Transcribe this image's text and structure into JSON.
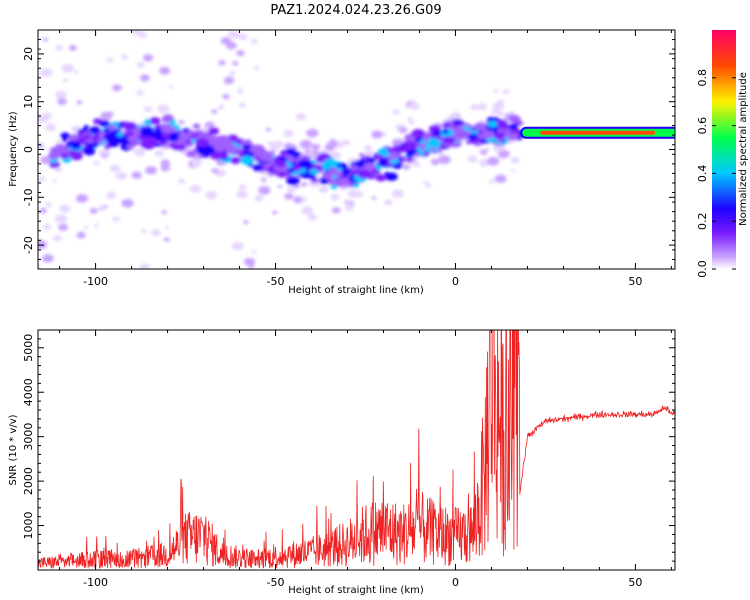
{
  "figure": {
    "title": "PAZ1.2024.024.23.26.G09"
  },
  "chart_data": [
    {
      "type": "heatmap",
      "xlabel": "Height of straight line (km)",
      "ylabel": "Frequency (Hz)",
      "xlim": [
        -116,
        61
      ],
      "ylim": [
        -25,
        25
      ],
      "xticks": [
        -100,
        -50,
        0,
        50
      ],
      "yticks": [
        -20,
        -10,
        0,
        10,
        20
      ],
      "colorbar": {
        "label": "Normalized spectral amplitude",
        "range": [
          0,
          1
        ],
        "ticks": [
          "0.0",
          "0.2",
          "0.4",
          "0.6",
          "0.8"
        ],
        "colors": [
          "#ffffff",
          "#c9a3ff",
          "#7a1cff",
          "#1f00ff",
          "#00c8ff",
          "#00ff4a",
          "#fff200",
          "#ff4a00",
          "#ff0066"
        ]
      },
      "ridge": {
        "description_free": true,
        "x": [
          -110,
          -100,
          -90,
          -80,
          -70,
          -60,
          -50,
          -40,
          -30,
          -20,
          -10,
          0,
          10,
          18,
          25,
          35,
          45,
          55,
          61
        ],
        "y": [
          -1,
          3,
          3,
          4,
          1,
          0,
          -3,
          -4,
          -5,
          -3,
          1,
          3,
          4,
          3,
          3,
          3.5,
          3.8,
          3.5,
          3.2
        ]
      },
      "tonal_line": {
        "x_start": 18,
        "x_end": 61,
        "frequency": 3.5,
        "amplitude": 0.85
      }
    },
    {
      "type": "line",
      "xlabel": "Height of straight line (km)",
      "ylabel": "SNR (10 * v/v)",
      "xlim": [
        -116,
        61
      ],
      "ylim": [
        0,
        5400
      ],
      "xticks": [
        -100,
        -50,
        0,
        50
      ],
      "yticks": [
        1000,
        2000,
        3000,
        4000,
        5000
      ],
      "color": "#ee2222",
      "series": [
        {
          "x": [
            -116,
            -110,
            -100,
            -90,
            -80,
            -75,
            -70,
            -65,
            -60,
            -55,
            -50,
            -45,
            -40,
            -35,
            -30,
            -25,
            -20,
            -15,
            -10,
            -5,
            0,
            5,
            8,
            10,
            13,
            15,
            17,
            18,
            20,
            25,
            30,
            35,
            40,
            45,
            50,
            55,
            58,
            61
          ],
          "values": [
            150,
            180,
            240,
            240,
            350,
            700,
            750,
            350,
            280,
            250,
            300,
            350,
            400,
            480,
            600,
            800,
            900,
            800,
            950,
            800,
            750,
            850,
            2000,
            4800,
            3000,
            2500,
            5300,
            1800,
            3000,
            3350,
            3400,
            3450,
            3500,
            3500,
            3500,
            3500,
            3650,
            3500
          ]
        }
      ]
    }
  ]
}
